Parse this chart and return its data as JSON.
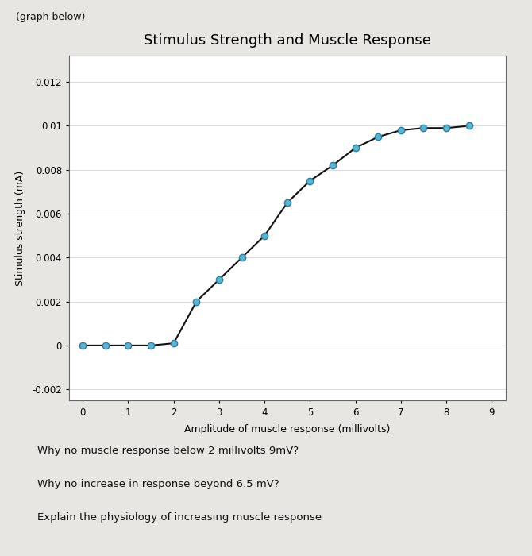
{
  "title": "Stimulus Strength and Muscle Response",
  "xlabel": "Amplitude of muscle response (millivolts)",
  "ylabel": "Stimulus strength (mA)",
  "x_data": [
    0,
    0.5,
    1.0,
    1.5,
    2.0,
    2.5,
    3.0,
    3.5,
    4.0,
    4.5,
    5.0,
    5.5,
    6.0,
    6.5,
    7.0,
    7.5,
    8.0,
    8.5
  ],
  "y_data": [
    0,
    0,
    0,
    0,
    0.0001,
    0.002,
    0.003,
    0.004,
    0.005,
    0.0065,
    0.0075,
    0.0082,
    0.009,
    0.0095,
    0.0098,
    0.0099,
    0.0099,
    0.01
  ],
  "xlim": [
    -0.3,
    9.3
  ],
  "ylim": [
    -0.0025,
    0.0132
  ],
  "yticks": [
    -0.002,
    0,
    0.002,
    0.004,
    0.006,
    0.008,
    0.01,
    0.012
  ],
  "xticks": [
    0,
    1,
    2,
    3,
    4,
    5,
    6,
    7,
    8,
    9
  ],
  "line_color": "#111111",
  "marker_color": "#5ab4d4",
  "marker_edge_color": "#2a7fa0",
  "chart_bg_color": "#ffffff",
  "page_bg_color": "#e8e6e2",
  "box_bg_color": "#f5f4f0",
  "title_fontsize": 13,
  "label_fontsize": 9,
  "tick_fontsize": 8.5,
  "text_lines": [
    "Why no muscle response below 2 millivolts 9mV?",
    "Why no increase in response beyond 6.5 mV?",
    "Explain the physiology of increasing muscle response"
  ]
}
